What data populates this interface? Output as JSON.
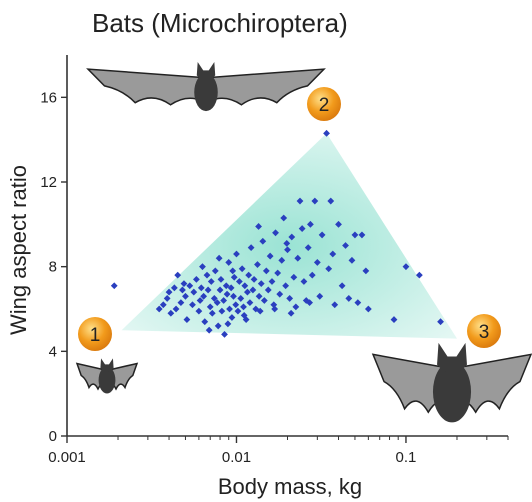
{
  "chart_data": {
    "type": "scatter",
    "title": "Bats (Microchiroptera)",
    "xlabel": "Body mass, kg",
    "ylabel": "Wing aspect ratio",
    "x_scale": "log",
    "xlim": [
      0.001,
      0.4
    ],
    "ylim": [
      0,
      18
    ],
    "x_ticks": [
      0.001,
      0.01,
      0.1
    ],
    "x_tick_labels": [
      "0.001",
      "0.01",
      "0.1"
    ],
    "y_ticks": [
      0,
      4,
      8,
      12,
      16
    ],
    "y_tick_labels": [
      "0",
      "4",
      "8",
      "12",
      "16"
    ],
    "grid": false,
    "colors": {
      "points": "#2a3fbf",
      "envelope": "#8fe0cf",
      "markers": "#f29b1c",
      "bat_body": "#3a3a3a",
      "bat_wing": "#9a9a9a"
    },
    "envelope": [
      {
        "x": 0.0021,
        "y": 5.0
      },
      {
        "x": 0.034,
        "y": 14.3
      },
      {
        "x": 0.2,
        "y": 4.6
      }
    ],
    "markers": [
      {
        "label": "1",
        "x": 0.0016,
        "y": 4.8,
        "bat": "small"
      },
      {
        "label": "2",
        "x": 0.035,
        "y": 15.5,
        "bat": "long-winged"
      },
      {
        "label": "3",
        "x": 0.25,
        "y": 4.8,
        "bat": "large"
      }
    ],
    "points": [
      {
        "x": 0.0019,
        "y": 7.1
      },
      {
        "x": 0.0035,
        "y": 6.0
      },
      {
        "x": 0.0037,
        "y": 6.2
      },
      {
        "x": 0.0039,
        "y": 6.5
      },
      {
        "x": 0.004,
        "y": 6.8
      },
      {
        "x": 0.0041,
        "y": 5.8
      },
      {
        "x": 0.0043,
        "y": 7.0
      },
      {
        "x": 0.0044,
        "y": 6.0
      },
      {
        "x": 0.0045,
        "y": 7.6
      },
      {
        "x": 0.0047,
        "y": 6.3
      },
      {
        "x": 0.0049,
        "y": 7.2
      },
      {
        "x": 0.005,
        "y": 6.6
      },
      {
        "x": 0.0051,
        "y": 5.5
      },
      {
        "x": 0.0053,
        "y": 7.1
      },
      {
        "x": 0.0055,
        "y": 6.2
      },
      {
        "x": 0.0056,
        "y": 6.8
      },
      {
        "x": 0.0058,
        "y": 7.4
      },
      {
        "x": 0.006,
        "y": 5.9
      },
      {
        "x": 0.0061,
        "y": 6.4
      },
      {
        "x": 0.0062,
        "y": 7.0
      },
      {
        "x": 0.0064,
        "y": 6.6
      },
      {
        "x": 0.0065,
        "y": 5.4
      },
      {
        "x": 0.0067,
        "y": 7.6
      },
      {
        "x": 0.0068,
        "y": 6.9
      },
      {
        "x": 0.007,
        "y": 6.1
      },
      {
        "x": 0.0071,
        "y": 7.3
      },
      {
        "x": 0.0072,
        "y": 5.8
      },
      {
        "x": 0.0074,
        "y": 6.5
      },
      {
        "x": 0.0075,
        "y": 7.8
      },
      {
        "x": 0.0077,
        "y": 6.3
      },
      {
        "x": 0.0078,
        "y": 5.2
      },
      {
        "x": 0.008,
        "y": 6.9
      },
      {
        "x": 0.0081,
        "y": 7.4
      },
      {
        "x": 0.0082,
        "y": 5.9
      },
      {
        "x": 0.0084,
        "y": 6.4
      },
      {
        "x": 0.0085,
        "y": 4.8
      },
      {
        "x": 0.0087,
        "y": 7.1
      },
      {
        "x": 0.0088,
        "y": 6.7
      },
      {
        "x": 0.009,
        "y": 8.2
      },
      {
        "x": 0.0091,
        "y": 6.0
      },
      {
        "x": 0.0093,
        "y": 7.0
      },
      {
        "x": 0.0094,
        "y": 5.6
      },
      {
        "x": 0.0096,
        "y": 6.6
      },
      {
        "x": 0.0097,
        "y": 7.5
      },
      {
        "x": 0.0099,
        "y": 6.2
      },
      {
        "x": 0.01,
        "y": 8.6
      },
      {
        "x": 0.0102,
        "y": 5.9
      },
      {
        "x": 0.0104,
        "y": 7.3
      },
      {
        "x": 0.0106,
        "y": 6.5
      },
      {
        "x": 0.0108,
        "y": 7.9
      },
      {
        "x": 0.011,
        "y": 6.1
      },
      {
        "x": 0.0112,
        "y": 7.1
      },
      {
        "x": 0.0114,
        "y": 5.5
      },
      {
        "x": 0.0116,
        "y": 6.8
      },
      {
        "x": 0.0118,
        "y": 7.6
      },
      {
        "x": 0.012,
        "y": 6.3
      },
      {
        "x": 0.0122,
        "y": 8.9
      },
      {
        "x": 0.0125,
        "y": 6.9
      },
      {
        "x": 0.0127,
        "y": 7.4
      },
      {
        "x": 0.013,
        "y": 6.0
      },
      {
        "x": 0.0133,
        "y": 8.1
      },
      {
        "x": 0.0136,
        "y": 6.6
      },
      {
        "x": 0.014,
        "y": 7.2
      },
      {
        "x": 0.0143,
        "y": 9.2
      },
      {
        "x": 0.0146,
        "y": 6.4
      },
      {
        "x": 0.015,
        "y": 7.8
      },
      {
        "x": 0.0154,
        "y": 6.9
      },
      {
        "x": 0.0158,
        "y": 8.5
      },
      {
        "x": 0.0162,
        "y": 7.3
      },
      {
        "x": 0.0166,
        "y": 6.2
      },
      {
        "x": 0.017,
        "y": 9.6
      },
      {
        "x": 0.0175,
        "y": 7.7
      },
      {
        "x": 0.018,
        "y": 6.7
      },
      {
        "x": 0.0185,
        "y": 8.3
      },
      {
        "x": 0.019,
        "y": 10.3
      },
      {
        "x": 0.0195,
        "y": 7.1
      },
      {
        "x": 0.02,
        "y": 8.8
      },
      {
        "x": 0.0206,
        "y": 6.5
      },
      {
        "x": 0.0212,
        "y": 9.4
      },
      {
        "x": 0.0218,
        "y": 7.5
      },
      {
        "x": 0.0224,
        "y": 6.1
      },
      {
        "x": 0.023,
        "y": 8.4
      },
      {
        "x": 0.0237,
        "y": 11.1
      },
      {
        "x": 0.0244,
        "y": 9.8
      },
      {
        "x": 0.025,
        "y": 7.3
      },
      {
        "x": 0.0258,
        "y": 6.4
      },
      {
        "x": 0.0265,
        "y": 8.9
      },
      {
        "x": 0.0273,
        "y": 10.0
      },
      {
        "x": 0.028,
        "y": 7.6
      },
      {
        "x": 0.029,
        "y": 11.1
      },
      {
        "x": 0.03,
        "y": 8.2
      },
      {
        "x": 0.031,
        "y": 6.6
      },
      {
        "x": 0.032,
        "y": 9.5
      },
      {
        "x": 0.034,
        "y": 14.3
      },
      {
        "x": 0.035,
        "y": 7.9
      },
      {
        "x": 0.036,
        "y": 11.1
      },
      {
        "x": 0.037,
        "y": 8.6
      },
      {
        "x": 0.038,
        "y": 6.2
      },
      {
        "x": 0.04,
        "y": 10.0
      },
      {
        "x": 0.042,
        "y": 7.1
      },
      {
        "x": 0.044,
        "y": 9.0
      },
      {
        "x": 0.046,
        "y": 6.5
      },
      {
        "x": 0.048,
        "y": 8.3
      },
      {
        "x": 0.05,
        "y": 9.5
      },
      {
        "x": 0.052,
        "y": 6.3
      },
      {
        "x": 0.055,
        "y": 9.5
      },
      {
        "x": 0.058,
        "y": 7.8
      },
      {
        "x": 0.06,
        "y": 6.0
      },
      {
        "x": 0.085,
        "y": 5.5
      },
      {
        "x": 0.1,
        "y": 8.0
      },
      {
        "x": 0.12,
        "y": 7.6
      },
      {
        "x": 0.16,
        "y": 5.4
      },
      {
        "x": 0.0048,
        "y": 6.9
      },
      {
        "x": 0.0069,
        "y": 5.0
      },
      {
        "x": 0.0089,
        "y": 5.3
      },
      {
        "x": 0.0111,
        "y": 5.7
      },
      {
        "x": 0.0138,
        "y": 5.9
      },
      {
        "x": 0.0168,
        "y": 6.0
      },
      {
        "x": 0.021,
        "y": 5.8
      },
      {
        "x": 0.027,
        "y": 6.3
      },
      {
        "x": 0.0063,
        "y": 8.0
      },
      {
        "x": 0.0079,
        "y": 8.4
      },
      {
        "x": 0.0095,
        "y": 7.8
      },
      {
        "x": 0.0135,
        "y": 9.9
      },
      {
        "x": 0.0198,
        "y": 9.1
      }
    ]
  }
}
